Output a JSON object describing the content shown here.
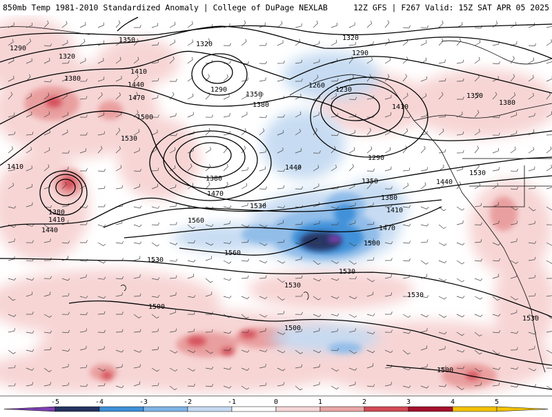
{
  "header": {
    "left_title": "850mb Temp 1981-2010 Standardized Anomaly | College of DuPage NEXLAB",
    "right_title": "12Z GFS | F267 Valid: 15Z SAT APR 05 2025"
  },
  "contour_labels": [
    {
      "text": "1290"
    },
    {
      "text": "1320"
    },
    {
      "text": "1350"
    },
    {
      "text": "1320"
    },
    {
      "text": "1290"
    },
    {
      "text": "1320"
    },
    {
      "text": "1290"
    },
    {
      "text": "1260"
    },
    {
      "text": "1230"
    },
    {
      "text": "1350"
    },
    {
      "text": "1380"
    },
    {
      "text": "1410"
    },
    {
      "text": "1440"
    },
    {
      "text": "1380"
    },
    {
      "text": "1470"
    },
    {
      "text": "1500"
    },
    {
      "text": "1350"
    },
    {
      "text": "1380"
    },
    {
      "text": "1410"
    },
    {
      "text": "1530"
    },
    {
      "text": "1380"
    },
    {
      "text": "1470"
    },
    {
      "text": "1440"
    },
    {
      "text": "1290"
    },
    {
      "text": "1350"
    },
    {
      "text": "1380"
    },
    {
      "text": "1410"
    },
    {
      "text": "1440"
    },
    {
      "text": "1530"
    },
    {
      "text": "1530"
    },
    {
      "text": "1470"
    },
    {
      "text": "1560"
    },
    {
      "text": "1560"
    },
    {
      "text": "1500"
    },
    {
      "text": "1530"
    },
    {
      "text": "1530"
    },
    {
      "text": "1530"
    },
    {
      "text": "1530"
    },
    {
      "text": "1500"
    },
    {
      "text": "1500"
    },
    {
      "text": "1500"
    },
    {
      "text": "1530"
    },
    {
      "text": "1410"
    },
    {
      "text": "1380"
    },
    {
      "text": "1410"
    },
    {
      "text": "1440"
    }
  ],
  "colorbar": {
    "ticks": [
      "-5",
      "-4",
      "-3",
      "-2",
      "-1",
      "0",
      "1",
      "2",
      "3",
      "4",
      "5"
    ],
    "colors": [
      "#7b3fb0",
      "#25325f",
      "#3d8fd8",
      "#7fb3e6",
      "#c5daf2",
      "#ffffff",
      "#f6d6d6",
      "#eaa5a5",
      "#d24a55",
      "#a50f2c",
      "#f2c200"
    ]
  },
  "colors": {
    "height_contours": "#000000",
    "coastline": "#000000"
  }
}
